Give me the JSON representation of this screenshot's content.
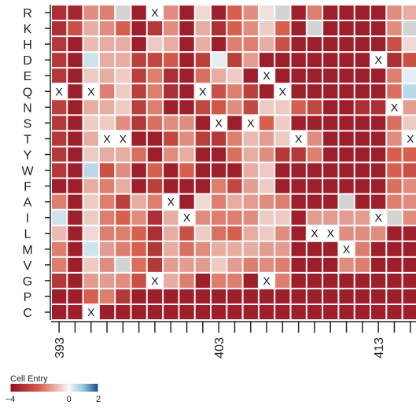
{
  "chart_data": {
    "type": "heatmap",
    "title": "",
    "xlabel": "",
    "ylabel": "",
    "rows": [
      "R",
      "K",
      "H",
      "D",
      "E",
      "Q",
      "N",
      "S",
      "T",
      "Y",
      "W",
      "F",
      "A",
      "I",
      "L",
      "M",
      "V",
      "G",
      "P",
      "C"
    ],
    "x_start": 393,
    "x_count": 23,
    "x_tick_labels": [
      "393",
      "403",
      "413"
    ],
    "x_tick_label_positions": [
      393,
      403,
      413
    ],
    "value_range": [
      -4,
      2
    ],
    "missing_color": "#d3d3d3",
    "colors": {
      "strong_negative": "#8f0f23",
      "zero": "#f7f7f7",
      "strong_positive": "#174a86"
    },
    "values": [
      [
        -3.2,
        -3.4,
        -1.4,
        -1.6,
        null,
        -3.6,
        "X",
        -1.4,
        -3.6,
        -0.4,
        -3.6,
        -2.0,
        -1.4,
        -0.3,
        null,
        -3.6,
        -1.6,
        -3.6,
        -3.6,
        -3.6,
        -3.6,
        -1.4,
        -1.0
      ],
      [
        -3.2,
        -2.4,
        -1.0,
        -1.4,
        -2.0,
        -3.6,
        -3.0,
        -1.4,
        -3.6,
        -1.0,
        -3.2,
        -2.0,
        -1.4,
        -0.6,
        -2.0,
        -3.6,
        null,
        -3.6,
        -3.6,
        -3.6,
        -3.6,
        -1.4,
        null
      ],
      [
        -3.0,
        -3.6,
        -0.8,
        -1.0,
        -1.0,
        -3.6,
        -0.6,
        -1.0,
        -3.6,
        -1.0,
        -3.6,
        -1.6,
        -1.6,
        -1.0,
        -2.4,
        -3.6,
        -3.6,
        -3.6,
        -3.6,
        -3.6,
        -3.6,
        -2.4,
        -0.4
      ],
      [
        -3.0,
        -3.6,
        0.4,
        -1.0,
        -1.0,
        -2.8,
        -2.6,
        -2.2,
        -3.6,
        -2.8,
        0.2,
        -2.8,
        -1.2,
        -3.6,
        -3.6,
        -3.6,
        -3.6,
        -3.6,
        -3.6,
        -3.6,
        "X",
        -3.2,
        -2.4
      ],
      [
        -3.0,
        -3.6,
        -0.6,
        -1.0,
        -0.6,
        -2.8,
        -1.6,
        -3.2,
        -3.6,
        -1.8,
        -1.0,
        -0.6,
        -3.6,
        "X",
        -3.6,
        -3.6,
        -3.6,
        -3.6,
        -3.6,
        -3.6,
        -3.6,
        -1.6,
        0.2
      ],
      [
        "X",
        -3.6,
        "X",
        -1.6,
        -0.6,
        -2.8,
        -1.6,
        -3.2,
        -3.6,
        "X",
        -2.4,
        -1.6,
        -2.8,
        -3.6,
        "X",
        -3.6,
        -3.6,
        -3.6,
        -3.6,
        -3.6,
        -3.6,
        -1.8,
        0.6
      ],
      [
        -2.8,
        -3.6,
        -1.0,
        -1.0,
        -0.6,
        -2.8,
        -1.6,
        -3.6,
        -3.6,
        -2.6,
        -2.2,
        -1.4,
        -2.6,
        -0.6,
        -0.6,
        -2.0,
        -2.6,
        -3.6,
        -3.6,
        -3.2,
        -3.2,
        "X",
        -1.2
      ],
      [
        -3.0,
        -3.6,
        -0.6,
        -0.6,
        -1.4,
        -3.0,
        -1.8,
        -1.4,
        -1.4,
        -3.6,
        "X",
        -3.6,
        "X",
        -2.0,
        -0.6,
        -3.6,
        -3.6,
        -3.6,
        -3.6,
        -3.6,
        -3.6,
        -1.8,
        -0.6
      ],
      [
        -3.0,
        -3.6,
        -1.0,
        "X",
        "X",
        -3.6,
        -3.6,
        -2.6,
        -1.4,
        -2.8,
        -3.0,
        -1.6,
        -0.8,
        -1.2,
        -0.6,
        "X",
        -1.4,
        -3.6,
        -3.6,
        -3.6,
        -3.6,
        -1.4,
        "X"
      ],
      [
        -3.0,
        -3.6,
        -0.6,
        -1.0,
        -1.0,
        -1.8,
        -3.6,
        -1.4,
        -1.0,
        -3.6,
        -3.6,
        -1.8,
        -1.0,
        -1.4,
        -3.0,
        -3.0,
        -1.6,
        -3.6,
        -3.6,
        -3.6,
        -3.6,
        -2.0,
        -2.0
      ],
      [
        -3.0,
        -3.6,
        0.6,
        -2.4,
        -1.4,
        -3.6,
        -2.0,
        -3.6,
        -2.0,
        -3.6,
        -3.6,
        -3.6,
        -1.0,
        -0.6,
        -3.6,
        -3.6,
        -3.6,
        -3.6,
        -3.6,
        -3.6,
        -3.6,
        -2.0,
        -2.4
      ],
      [
        -3.6,
        -3.6,
        -1.0,
        -1.6,
        -1.0,
        -3.6,
        -2.8,
        -3.6,
        -3.6,
        -3.6,
        -1.6,
        -2.6,
        -1.2,
        -0.6,
        -3.6,
        -3.6,
        -3.6,
        -3.6,
        -3.6,
        -3.6,
        -3.6,
        -1.8,
        -1.4
      ],
      [
        -1.6,
        -3.6,
        -0.6,
        -1.6,
        -2.8,
        -1.0,
        -1.6,
        "X",
        -3.6,
        -0.4,
        -1.6,
        -1.0,
        -1.2,
        -1.4,
        -1.6,
        -3.6,
        -3.6,
        -3.6,
        null,
        -3.6,
        -3.6,
        -1.6,
        -1.4
      ],
      [
        0.4,
        -3.6,
        -0.6,
        -1.6,
        -2.0,
        -1.4,
        -3.2,
        -1.0,
        "X",
        -1.4,
        -1.6,
        -1.6,
        -1.4,
        -0.6,
        -0.6,
        -3.6,
        -1.2,
        -1.2,
        -1.2,
        -1.2,
        "X",
        null,
        -1.4
      ],
      [
        -0.8,
        -3.6,
        -0.4,
        -1.6,
        -1.6,
        -2.0,
        -3.2,
        -1.0,
        -2.4,
        -0.6,
        -1.8,
        -2.0,
        -1.0,
        -0.6,
        -1.4,
        -3.6,
        "X",
        "X",
        -1.4,
        -1.4,
        -1.4,
        -3.6,
        -3.6
      ],
      [
        -1.6,
        -3.6,
        0.4,
        -1.2,
        -1.6,
        -2.0,
        -3.0,
        -1.0,
        -1.8,
        -1.4,
        -1.0,
        -1.0,
        -1.0,
        -1.2,
        -1.2,
        -3.6,
        -3.6,
        -3.6,
        "X",
        -1.6,
        -3.6,
        -3.6,
        -3.6
      ],
      [
        -1.6,
        -3.6,
        -0.6,
        -1.4,
        null,
        -1.8,
        -3.0,
        -1.2,
        -1.2,
        -1.2,
        -0.6,
        -1.2,
        -1.6,
        -1.4,
        -1.6,
        -3.6,
        -3.6,
        -3.6,
        -1.4,
        -1.6,
        -3.6,
        -3.6,
        -3.6
      ],
      [
        -3.0,
        -3.6,
        -1.2,
        -1.2,
        -1.4,
        -2.4,
        "X",
        -1.0,
        -1.6,
        -3.6,
        -1.6,
        -1.6,
        -3.6,
        "X",
        -1.6,
        -3.6,
        -3.6,
        -3.6,
        -3.6,
        -3.6,
        -3.6,
        -3.6,
        -3.6
      ],
      [
        -3.6,
        -3.6,
        -2.0,
        -1.6,
        -3.0,
        -3.6,
        -3.6,
        -3.6,
        -3.6,
        -3.6,
        -3.6,
        -3.6,
        -3.6,
        -3.6,
        -3.6,
        -3.6,
        -3.6,
        -3.6,
        -3.6,
        -3.6,
        -3.6,
        -3.6,
        -3.6
      ],
      [
        -3.6,
        -3.6,
        "X",
        -3.6,
        -3.6,
        -3.6,
        -3.6,
        -3.6,
        -3.6,
        -3.6,
        -3.6,
        -3.6,
        -3.6,
        -3.6,
        -3.6,
        -3.6,
        -3.6,
        -3.6,
        -3.6,
        -3.6,
        -3.6,
        -3.6,
        -3.6
      ]
    ],
    "legend": {
      "title": "Cell Entry",
      "tick_labels": [
        "−4",
        "0",
        "2"
      ],
      "tick_values": [
        -4,
        0,
        2
      ]
    }
  }
}
